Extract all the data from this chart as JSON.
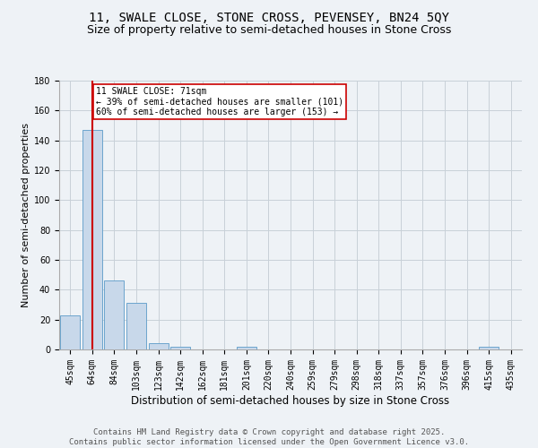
{
  "title": "11, SWALE CLOSE, STONE CROSS, PEVENSEY, BN24 5QY",
  "subtitle": "Size of property relative to semi-detached houses in Stone Cross",
  "xlabel": "Distribution of semi-detached houses by size in Stone Cross",
  "ylabel": "Number of semi-detached properties",
  "categories": [
    "45sqm",
    "64sqm",
    "84sqm",
    "103sqm",
    "123sqm",
    "142sqm",
    "162sqm",
    "181sqm",
    "201sqm",
    "220sqm",
    "240sqm",
    "259sqm",
    "279sqm",
    "298sqm",
    "318sqm",
    "337sqm",
    "357sqm",
    "376sqm",
    "396sqm",
    "415sqm",
    "435sqm"
  ],
  "values": [
    23,
    147,
    46,
    31,
    4,
    2,
    0,
    0,
    2,
    0,
    0,
    0,
    0,
    0,
    0,
    0,
    0,
    0,
    0,
    2,
    0
  ],
  "bar_color": "#c8d8ea",
  "bar_edge_color": "#5b9bc8",
  "grid_color": "#c8d0d8",
  "background_color": "#eef2f6",
  "vline_x": 1.0,
  "vline_color": "#cc0000",
  "annotation_title": "11 SWALE CLOSE: 71sqm",
  "annotation_line1": "← 39% of semi-detached houses are smaller (101)",
  "annotation_line2": "60% of semi-detached houses are larger (153) →",
  "annotation_box_color": "#cc0000",
  "ylim": [
    0,
    180
  ],
  "yticks": [
    0,
    20,
    40,
    60,
    80,
    100,
    120,
    140,
    160,
    180
  ],
  "footer": "Contains HM Land Registry data © Crown copyright and database right 2025.\nContains public sector information licensed under the Open Government Licence v3.0.",
  "title_fontsize": 10,
  "subtitle_fontsize": 9,
  "xlabel_fontsize": 8.5,
  "ylabel_fontsize": 8,
  "tick_fontsize": 7,
  "footer_fontsize": 6.5
}
